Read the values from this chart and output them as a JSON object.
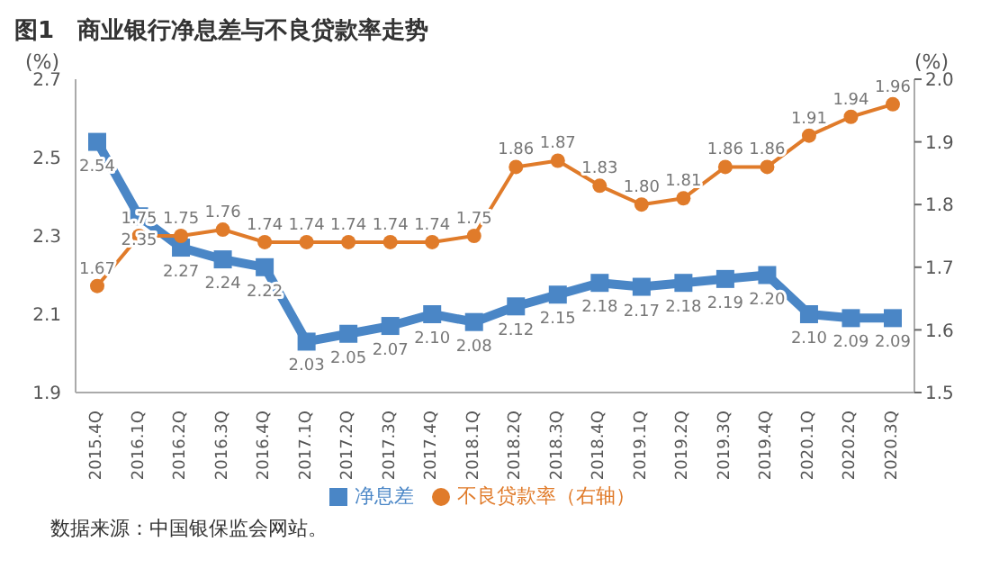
{
  "chart_data": {
    "type": "line",
    "title": "图1　商业银行净息差与不良贷款率走势",
    "ylabel": "(%)",
    "y2label": "(%)",
    "categories": [
      "2015.4Q",
      "2016.1Q",
      "2016.2Q",
      "2016.3Q",
      "2016.4Q",
      "2017.1Q",
      "2017.2Q",
      "2017.3Q",
      "2017.4Q",
      "2018.1Q",
      "2018.2Q",
      "2018.3Q",
      "2018.4Q",
      "2019.1Q",
      "2019.2Q",
      "2019.3Q",
      "2019.4Q",
      "2020.1Q",
      "2020.2Q",
      "2020.3Q"
    ],
    "series": [
      {
        "name": "净息差",
        "color": "#4a86c6",
        "marker": "square",
        "values": [
          2.54,
          2.35,
          2.27,
          2.24,
          2.22,
          2.03,
          2.05,
          2.07,
          2.1,
          2.08,
          2.12,
          2.15,
          2.18,
          2.17,
          2.18,
          2.19,
          2.2,
          2.1,
          2.09,
          2.09
        ],
        "value_labels": [
          "2.54",
          "2.35",
          "2.27",
          "2.24",
          "2.22",
          "2.03",
          "2.05",
          "2.07",
          "2.10",
          "2.08",
          "2.12",
          "2.15",
          "2.18",
          "2.17",
          "2.18",
          "2.19",
          "2.20",
          "2.10",
          "2.09",
          "2.09"
        ]
      },
      {
        "name": "不良贷款率（右轴）",
        "color": "#e07b2a",
        "marker": "circle",
        "axis": "y2",
        "values": [
          1.67,
          1.75,
          1.75,
          1.76,
          1.74,
          1.74,
          1.74,
          1.74,
          1.74,
          1.75,
          1.86,
          1.87,
          1.83,
          1.8,
          1.81,
          1.86,
          1.86,
          1.91,
          1.94,
          1.96
        ],
        "value_labels": [
          "1.67",
          "1.75",
          "1.75",
          "1.76",
          "1.74",
          "1.74",
          "1.74",
          "1.74",
          "1.74",
          "1.75",
          "1.86",
          "1.87",
          "1.83",
          "1.80",
          "1.81",
          "1.86",
          "1.86",
          "1.91",
          "1.94",
          "1.96"
        ]
      }
    ],
    "ylim": [
      1.9,
      2.7
    ],
    "yticks": [
      1.9,
      2.1,
      2.3,
      2.5,
      2.7
    ],
    "y2lim": [
      1.5,
      2.0
    ],
    "y2ticks": [
      1.5,
      1.6,
      1.7,
      1.8,
      1.9,
      {
        "value": 2,
        "label": "2.0"
      }
    ],
    "data_labels": true,
    "legend": "bottom",
    "line_style": "solid",
    "annotations": [
      "数据来源：中国银保监会网站。"
    ]
  }
}
